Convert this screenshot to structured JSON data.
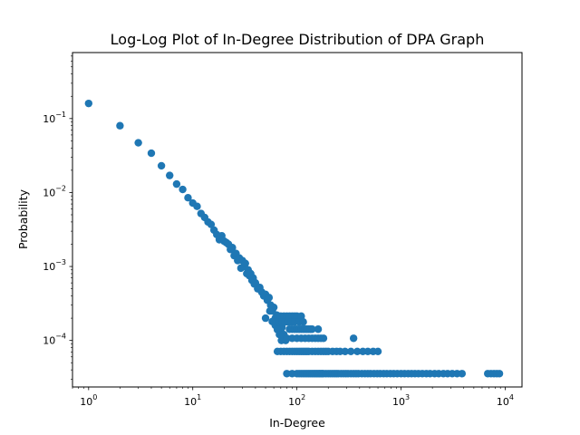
{
  "chart_data": {
    "type": "scatter",
    "title": "Log-Log Plot of In-Degree Distribution of DPA Graph",
    "xlabel": "In-Degree",
    "ylabel": "Probability",
    "x_scale": "log",
    "y_scale": "log",
    "xlim": [
      0.7,
      14500
    ],
    "ylim": [
      2.35e-05,
      0.78
    ],
    "grid": false,
    "legend": "none",
    "marker_color": "#1f77b4",
    "x_ticks": [
      {
        "value": 1,
        "base": "10",
        "exp": "0"
      },
      {
        "value": 10,
        "base": "10",
        "exp": "1"
      },
      {
        "value": 100,
        "base": "10",
        "exp": "2"
      },
      {
        "value": 1000,
        "base": "10",
        "exp": "3"
      },
      {
        "value": 10000,
        "base": "10",
        "exp": "4"
      }
    ],
    "y_ticks": [
      {
        "value": 0.0001,
        "base": "10",
        "exp": "−4"
      },
      {
        "value": 0.001,
        "base": "10",
        "exp": "−3"
      },
      {
        "value": 0.01,
        "base": "10",
        "exp": "−2"
      },
      {
        "value": 0.1,
        "base": "10",
        "exp": "−1"
      }
    ],
    "points": [
      [
        1,
        0.16
      ],
      [
        2,
        0.08
      ],
      [
        3,
        0.047
      ],
      [
        4,
        0.034
      ],
      [
        5,
        0.023
      ],
      [
        6,
        0.017
      ],
      [
        7,
        0.013
      ],
      [
        8,
        0.011
      ],
      [
        9,
        0.0085
      ],
      [
        10,
        0.0072
      ],
      [
        11,
        0.0065
      ],
      [
        12,
        0.0052
      ],
      [
        13,
        0.0046
      ],
      [
        14,
        0.004
      ],
      [
        15,
        0.0037
      ],
      [
        16,
        0.0031
      ],
      [
        17,
        0.0027
      ],
      [
        18,
        0.0023
      ],
      [
        19,
        0.0026
      ],
      [
        20,
        0.0022
      ],
      [
        21,
        0.0021
      ],
      [
        22,
        0.002
      ],
      [
        23,
        0.0017
      ],
      [
        24,
        0.0018
      ],
      [
        25,
        0.0014
      ],
      [
        26,
        0.0015
      ],
      [
        27,
        0.0012
      ],
      [
        28,
        0.0013
      ],
      [
        29,
        0.00095
      ],
      [
        30,
        0.0012
      ],
      [
        31,
        0.001
      ],
      [
        32,
        0.0011
      ],
      [
        33,
        0.0008
      ],
      [
        34,
        0.0009
      ],
      [
        35,
        0.00075
      ],
      [
        36,
        0.0008
      ],
      [
        37,
        0.00065
      ],
      [
        38,
        0.0007
      ],
      [
        39,
        0.00058
      ],
      [
        40,
        0.0006
      ],
      [
        42,
        0.0005
      ],
      [
        44,
        0.00052
      ],
      [
        46,
        0.00045
      ],
      [
        48,
        0.0004
      ],
      [
        50,
        0.00042
      ],
      [
        52,
        0.00035
      ],
      [
        54,
        0.00038
      ],
      [
        56,
        0.0003
      ],
      [
        58,
        0.00025
      ],
      [
        60,
        0.00028
      ],
      [
        62,
        0.0002
      ],
      [
        64,
        0.00022
      ],
      [
        66,
        0.00018
      ],
      [
        68,
        0.00016
      ],
      [
        70,
        0.00014
      ],
      [
        72,
        0.00015
      ],
      [
        75,
        0.00012
      ],
      [
        78,
        0.0001
      ],
      [
        50,
        0.0002
      ],
      [
        55,
        0.00025
      ],
      [
        58,
        0.00018
      ],
      [
        62,
        0.00016
      ],
      [
        65,
        0.00014
      ],
      [
        68,
        0.00012
      ],
      [
        71,
        0.0001
      ],
      [
        73,
        0.00011
      ],
      [
        66,
        0.000213
      ],
      [
        70,
        0.000213
      ],
      [
        75,
        0.000213
      ],
      [
        80,
        0.000213
      ],
      [
        85,
        0.000213
      ],
      [
        90,
        0.000213
      ],
      [
        95,
        0.000213
      ],
      [
        100,
        0.000213
      ],
      [
        110,
        0.000213
      ],
      [
        63,
        0.000178
      ],
      [
        67,
        0.000178
      ],
      [
        72,
        0.000178
      ],
      [
        77,
        0.000178
      ],
      [
        82,
        0.000178
      ],
      [
        88,
        0.000178
      ],
      [
        95,
        0.000178
      ],
      [
        105,
        0.000178
      ],
      [
        115,
        0.000178
      ],
      [
        85,
        0.000142
      ],
      [
        90,
        0.000142
      ],
      [
        95,
        0.000142
      ],
      [
        100,
        0.000142
      ],
      [
        105,
        0.000142
      ],
      [
        110,
        0.000142
      ],
      [
        115,
        0.000142
      ],
      [
        120,
        0.000142
      ],
      [
        125,
        0.000142
      ],
      [
        130,
        0.000142
      ],
      [
        135,
        0.000142
      ],
      [
        140,
        0.000142
      ],
      [
        160,
        0.000142
      ],
      [
        80,
        0.000107
      ],
      [
        90,
        0.000107
      ],
      [
        100,
        0.000107
      ],
      [
        110,
        0.000107
      ],
      [
        120,
        0.000107
      ],
      [
        130,
        0.000107
      ],
      [
        140,
        0.000107
      ],
      [
        150,
        0.000107
      ],
      [
        160,
        0.000107
      ],
      [
        170,
        0.000107
      ],
      [
        180,
        0.000107
      ],
      [
        350,
        0.000107
      ],
      [
        65,
        7.1e-05
      ],
      [
        70,
        7.1e-05
      ],
      [
        75,
        7.1e-05
      ],
      [
        80,
        7.1e-05
      ],
      [
        85,
        7.1e-05
      ],
      [
        90,
        7.1e-05
      ],
      [
        95,
        7.1e-05
      ],
      [
        100,
        7.1e-05
      ],
      [
        105,
        7.1e-05
      ],
      [
        110,
        7.1e-05
      ],
      [
        115,
        7.1e-05
      ],
      [
        120,
        7.1e-05
      ],
      [
        125,
        7.1e-05
      ],
      [
        130,
        7.1e-05
      ],
      [
        140,
        7.1e-05
      ],
      [
        150,
        7.1e-05
      ],
      [
        160,
        7.1e-05
      ],
      [
        170,
        7.1e-05
      ],
      [
        180,
        7.1e-05
      ],
      [
        190,
        7.1e-05
      ],
      [
        200,
        7.1e-05
      ],
      [
        220,
        7.1e-05
      ],
      [
        240,
        7.1e-05
      ],
      [
        260,
        7.1e-05
      ],
      [
        290,
        7.1e-05
      ],
      [
        330,
        7.1e-05
      ],
      [
        380,
        7.1e-05
      ],
      [
        430,
        7.1e-05
      ],
      [
        480,
        7.1e-05
      ],
      [
        540,
        7.1e-05
      ],
      [
        600,
        7.1e-05
      ],
      [
        80,
        3.56e-05
      ],
      [
        90,
        3.56e-05
      ],
      [
        100,
        3.56e-05
      ],
      [
        105,
        3.56e-05
      ],
      [
        110,
        3.56e-05
      ],
      [
        115,
        3.56e-05
      ],
      [
        120,
        3.56e-05
      ],
      [
        125,
        3.56e-05
      ],
      [
        130,
        3.56e-05
      ],
      [
        135,
        3.56e-05
      ],
      [
        140,
        3.56e-05
      ],
      [
        145,
        3.56e-05
      ],
      [
        150,
        3.56e-05
      ],
      [
        155,
        3.56e-05
      ],
      [
        160,
        3.56e-05
      ],
      [
        165,
        3.56e-05
      ],
      [
        170,
        3.56e-05
      ],
      [
        175,
        3.56e-05
      ],
      [
        180,
        3.56e-05
      ],
      [
        190,
        3.56e-05
      ],
      [
        200,
        3.56e-05
      ],
      [
        210,
        3.56e-05
      ],
      [
        220,
        3.56e-05
      ],
      [
        230,
        3.56e-05
      ],
      [
        240,
        3.56e-05
      ],
      [
        250,
        3.56e-05
      ],
      [
        265,
        3.56e-05
      ],
      [
        280,
        3.56e-05
      ],
      [
        295,
        3.56e-05
      ],
      [
        310,
        3.56e-05
      ],
      [
        330,
        3.56e-05
      ],
      [
        350,
        3.56e-05
      ],
      [
        370,
        3.56e-05
      ],
      [
        390,
        3.56e-05
      ],
      [
        420,
        3.56e-05
      ],
      [
        450,
        3.56e-05
      ],
      [
        480,
        3.56e-05
      ],
      [
        510,
        3.56e-05
      ],
      [
        550,
        3.56e-05
      ],
      [
        590,
        3.56e-05
      ],
      [
        630,
        3.56e-05
      ],
      [
        680,
        3.56e-05
      ],
      [
        730,
        3.56e-05
      ],
      [
        790,
        3.56e-05
      ],
      [
        850,
        3.56e-05
      ],
      [
        920,
        3.56e-05
      ],
      [
        1000,
        3.56e-05
      ],
      [
        1080,
        3.56e-05
      ],
      [
        1170,
        3.56e-05
      ],
      [
        1260,
        3.56e-05
      ],
      [
        1360,
        3.56e-05
      ],
      [
        1470,
        3.56e-05
      ],
      [
        1600,
        3.56e-05
      ],
      [
        1750,
        3.56e-05
      ],
      [
        1900,
        3.56e-05
      ],
      [
        2100,
        3.56e-05
      ],
      [
        2300,
        3.56e-05
      ],
      [
        2550,
        3.56e-05
      ],
      [
        2800,
        3.56e-05
      ],
      [
        3100,
        3.56e-05
      ],
      [
        3450,
        3.56e-05
      ],
      [
        3850,
        3.56e-05
      ],
      [
        6800,
        3.56e-05
      ],
      [
        7300,
        3.56e-05
      ],
      [
        7800,
        3.56e-05
      ],
      [
        8300,
        3.56e-05
      ],
      [
        8800,
        3.56e-05
      ]
    ]
  }
}
